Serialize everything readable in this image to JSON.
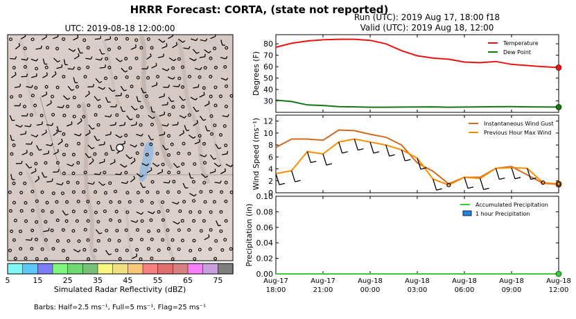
{
  "figure_title": "HRRR Forecast: CORTA, (state not reported)",
  "map_panel": {
    "title": "UTC: 2019-08-18 12:00:00",
    "colorbar_label": "Simulated Radar Reflectivity (dBZ)",
    "colorbar_ticks": [
      "5",
      "15",
      "25",
      "35",
      "45",
      "55",
      "65",
      "75"
    ],
    "colorbar_colors": [
      "#7ff7f7",
      "#5bc8f7",
      "#7d7df7",
      "#7ff77f",
      "#70d870",
      "#78c078",
      "#f7f77f",
      "#f0e080",
      "#f7c87a",
      "#f77f7f",
      "#e07070",
      "#d88080",
      "#f77ff7",
      "#c8a0e0",
      "#7f7f7f"
    ],
    "barb_note": "Barbs: Half=2.5 ms⁻¹, Full=5 ms⁻¹, Flag=25 ms⁻¹"
  },
  "run_line": "Run (UTC): 2019 Aug 17, 18:00 f18",
  "valid_line": "Valid (UTC): 2019 Aug 18, 12:00",
  "x_tick_labels": [
    {
      "line1": "Aug-17",
      "line2": "18:00"
    },
    {
      "line1": "Aug-17",
      "line2": "21:00"
    },
    {
      "line1": "Aug-18",
      "line2": "00:00"
    },
    {
      "line1": "Aug-18",
      "line2": "03:00"
    },
    {
      "line1": "Aug-18",
      "line2": "06:00"
    },
    {
      "line1": "Aug-18",
      "line2": "09:00"
    },
    {
      "line1": "Aug-18",
      "line2": "12:00"
    }
  ],
  "chart_data": [
    {
      "type": "line",
      "ylabel": "Degrees (F)",
      "ylim": [
        20,
        88
      ],
      "yticks": [
        30,
        40,
        50,
        60,
        70,
        80
      ],
      "x_hours": [
        0,
        18
      ],
      "legend_position": "top-right",
      "series": [
        {
          "name": "Temperature",
          "color": "#ee1111",
          "hours": [
            0,
            1,
            2,
            3,
            4,
            5,
            6,
            7,
            8,
            9,
            10,
            11,
            12,
            13,
            14,
            15,
            16,
            17,
            18
          ],
          "values": [
            77,
            80.5,
            82.5,
            83.5,
            84,
            84,
            83,
            80,
            74,
            69.5,
            67.5,
            66.5,
            64,
            63.5,
            64.5,
            62,
            61,
            60,
            59.2
          ]
        },
        {
          "name": "Dew Point",
          "color": "#117711",
          "hours": [
            0,
            1,
            2,
            3,
            4,
            5,
            6,
            7,
            8,
            9,
            10,
            11,
            12,
            13,
            14,
            15,
            16,
            17,
            18
          ],
          "values": [
            30.7,
            29.5,
            26.5,
            26,
            25,
            24.8,
            24.5,
            24.5,
            24.6,
            24.7,
            24.8,
            24.5,
            24.6,
            24.8,
            24.9,
            25,
            24.8,
            24.7,
            24.6
          ]
        }
      ]
    },
    {
      "type": "line",
      "ylabel": "Wind Speed (ms⁻¹)",
      "ylim": [
        0,
        13
      ],
      "yticks": [
        0,
        2,
        4,
        6,
        8,
        10,
        12
      ],
      "legend_position": "top-right",
      "series": [
        {
          "name": "Instantaneous Wind Gust",
          "color": "#d2691e",
          "hours": [
            0,
            1,
            2,
            3,
            4,
            5,
            6,
            7,
            8,
            9,
            10,
            11,
            12,
            13,
            14,
            15,
            16,
            17,
            18
          ],
          "values": [
            7.6,
            9,
            9,
            8.8,
            10.5,
            10.4,
            9.8,
            9.3,
            8,
            5,
            3.6,
            1.5,
            2.6,
            2.6,
            4.1,
            4.4,
            3,
            1.6,
            1.4
          ]
        },
        {
          "name": "Previous Hour Max Wind",
          "color": "#ff8c00",
          "hours": [
            0,
            1,
            2,
            3,
            4,
            5,
            6,
            7,
            8,
            9,
            10,
            11,
            12,
            13,
            14,
            15,
            16,
            17,
            18
          ],
          "values": [
            3.2,
            3.7,
            6.9,
            6.5,
            8.5,
            9,
            8.5,
            8,
            7.2,
            5.8,
            2.3,
            1.3,
            2.6,
            2.4,
            4.1,
            4.2,
            4.1,
            1.7,
            1.5
          ]
        }
      ]
    },
    {
      "type": "area",
      "ylabel": "Precipitation (in)",
      "ylim": [
        0,
        0.1
      ],
      "yticks": [
        "0.00",
        "0.02",
        "0.04",
        "0.06",
        "0.08",
        "0.10"
      ],
      "legend_position": "top-right",
      "series": [
        {
          "name": "Accumulated Precipitation",
          "color": "#33cc33",
          "hours": [
            0,
            18
          ],
          "values": [
            0,
            0
          ]
        },
        {
          "name": "1 hour Precipitation",
          "color": "#1e88e5",
          "hours": [],
          "values": []
        }
      ]
    }
  ]
}
